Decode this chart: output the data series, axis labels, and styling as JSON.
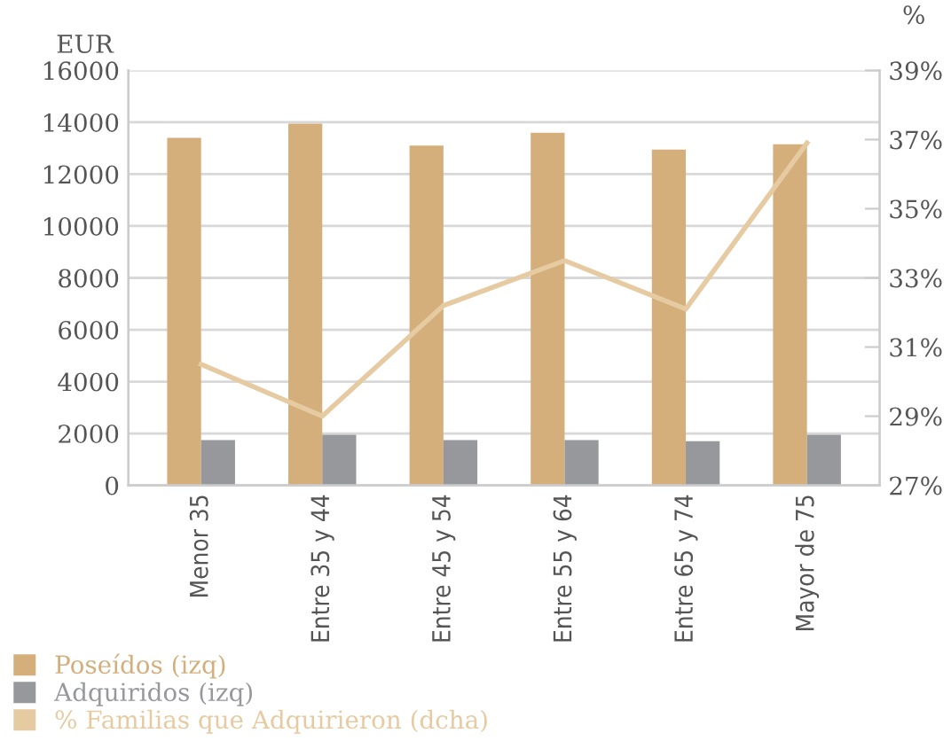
{
  "chart_data": {
    "type": "bar",
    "ylabel": "EUR",
    "y2label": "%",
    "categories": [
      "Menor 35",
      "Entre 35 y 44",
      "Entre 45 y 54",
      "Entre 55 y 64",
      "Entre 65 y 74",
      "Mayor de 75"
    ],
    "series": [
      {
        "name": "Poseídos (izq)",
        "color": "#d4ae7b",
        "values": [
          13400,
          13950,
          13100,
          13600,
          12950,
          13150
        ]
      },
      {
        "name": "Adquiridos (izq)",
        "color": "#97989c",
        "values": [
          1750,
          1950,
          1750,
          1750,
          1700,
          1950
        ]
      },
      {
        "name": "% Familias que Adquirieron (dcha)",
        "color": "#e6cba2",
        "type": "line",
        "axis": "y2",
        "values": [
          30.5,
          29.0,
          32.2,
          33.5,
          32.1,
          36.9
        ]
      }
    ],
    "ylim": [
      0,
      16000
    ],
    "yticks": [
      0,
      2000,
      4000,
      6000,
      8000,
      10000,
      12000,
      14000,
      16000
    ],
    "y2lim": [
      27,
      39
    ],
    "y2ticks": [
      {
        "value": 27,
        "label": "27%"
      },
      {
        "value": 29,
        "label": "29%"
      },
      {
        "value": 31,
        "label": "31%"
      },
      {
        "value": 33,
        "label": "33%"
      },
      {
        "value": 35,
        "label": "35%"
      },
      {
        "value": 37,
        "label": "37%"
      },
      {
        "value": 39,
        "label": "39%"
      }
    ],
    "grid": "y",
    "legend": "bottom left",
    "marker": "none",
    "line_style": "solid"
  }
}
